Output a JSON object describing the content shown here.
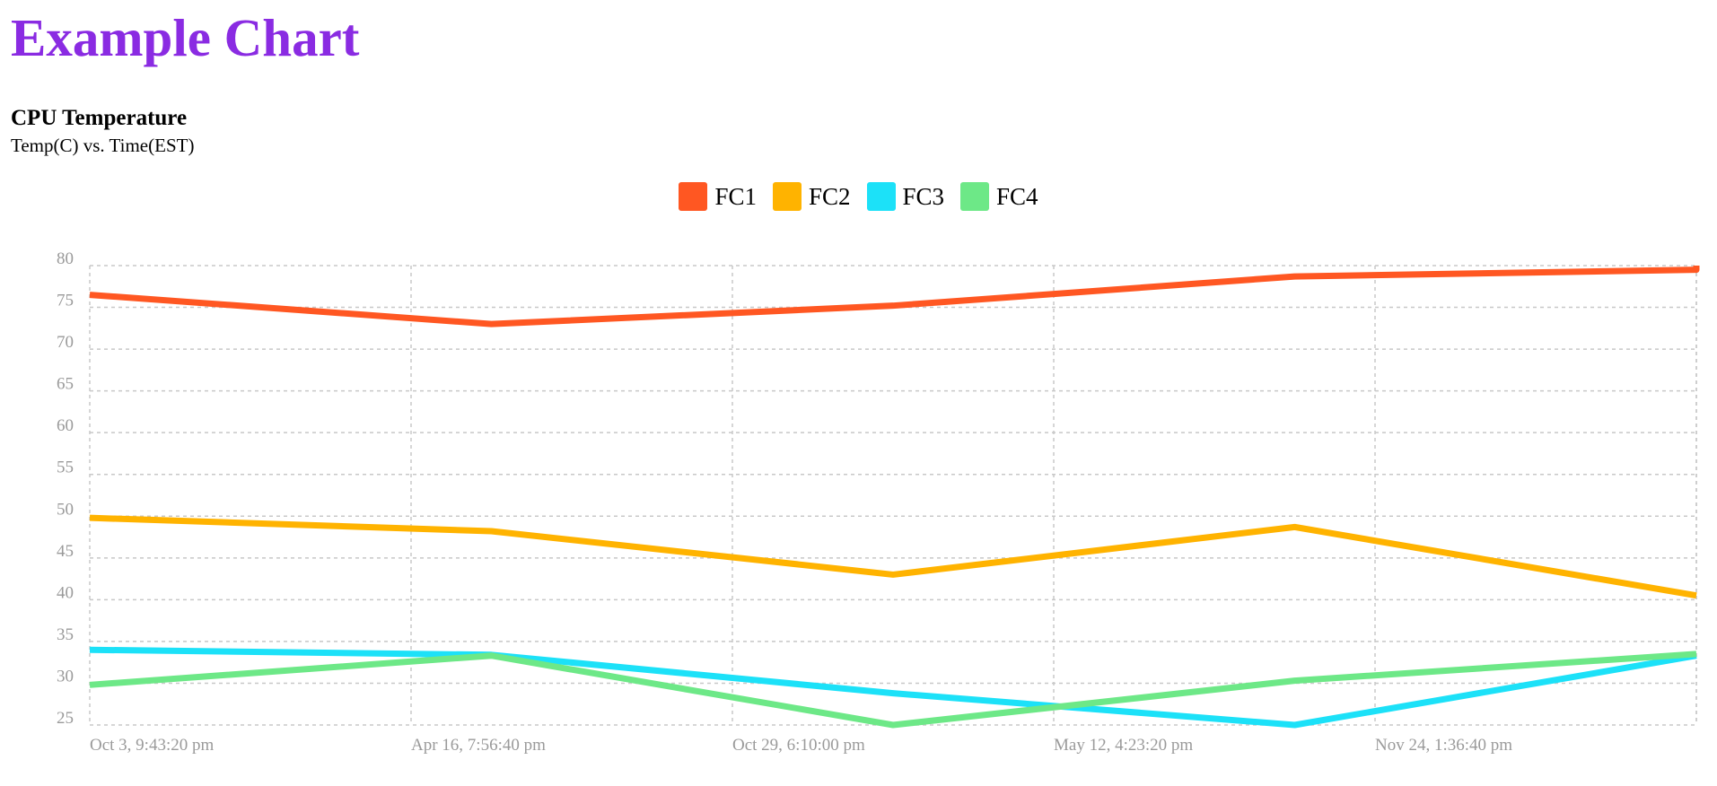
{
  "page": {
    "title": "Example Chart",
    "title_color": "#8a2be2"
  },
  "chart_data": {
    "type": "line",
    "title": "CPU Temperature",
    "subtitle": "Temp(C) vs. Time(EST)",
    "legend_position": "top-center",
    "grid": true,
    "ylim": [
      25,
      80
    ],
    "y_ticks": [
      80,
      75,
      70,
      65,
      60,
      55,
      50,
      45,
      40,
      35,
      30,
      25
    ],
    "x_tick_labels": [
      "Oct 3, 9:43:20 pm",
      "Apr 16, 7:56:40 pm",
      "Oct 29, 6:10:00 pm",
      "May 12, 4:23:20 pm",
      "Nov 24, 1:36:40 pm"
    ],
    "x_point_count": 9,
    "series": [
      {
        "name": "FC1",
        "color": "#ff5722",
        "x": [
          0,
          1.25,
          2.5,
          3.75,
          5,
          5.4
        ],
        "y": [
          76.5,
          73,
          75.2,
          78.7,
          79.5,
          80
        ]
      },
      {
        "name": "FC2",
        "color": "#ffb300",
        "x": [
          0,
          1.25,
          2.5,
          3.75,
          5
        ],
        "y": [
          49.8,
          48.2,
          43,
          48.7,
          40.5
        ]
      },
      {
        "name": "FC3",
        "color": "#1ce1f8",
        "x": [
          0,
          1.25,
          2.5,
          3.75,
          5
        ],
        "y": [
          34,
          33.4,
          28.8,
          25,
          33.3
        ]
      },
      {
        "name": "FC4",
        "color": "#6de887",
        "x": [
          0,
          1.25,
          2.5,
          3.75,
          5
        ],
        "y": [
          29.8,
          33.3,
          25,
          30.3,
          33.5
        ]
      }
    ]
  }
}
